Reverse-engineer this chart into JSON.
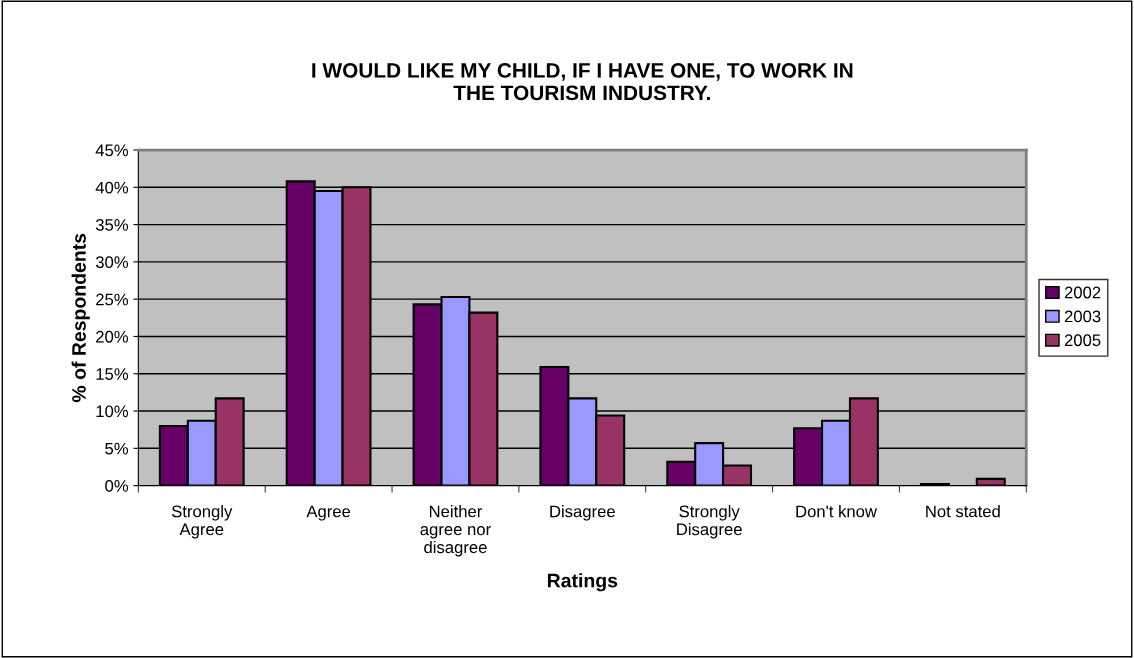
{
  "chart_data": {
    "type": "bar",
    "title": "I WOULD LIKE MY CHILD, IF I HAVE ONE, TO WORK IN\nTHE TOURISM INDUSTRY.",
    "xlabel": "Ratings",
    "ylabel": "% of Respondents",
    "categories": [
      "Strongly\nAgree",
      "Agree",
      "Neither\nagree nor\ndisagree",
      "Disagree",
      "Strongly\nDisagree",
      "Don't know",
      "Not stated"
    ],
    "series": [
      {
        "name": "2002",
        "color": "#660066",
        "values": [
          8.0,
          40.8,
          24.3,
          15.9,
          3.2,
          7.7,
          0.2
        ]
      },
      {
        "name": "2003",
        "color": "#9999ff",
        "values": [
          8.7,
          39.5,
          25.3,
          11.7,
          5.7,
          8.7,
          null
        ]
      },
      {
        "name": "2005",
        "color": "#993366",
        "values": [
          11.7,
          40.0,
          23.2,
          9.4,
          2.7,
          11.7,
          0.9
        ]
      }
    ],
    "ylim": [
      0,
      45
    ],
    "yticks": [
      {
        "value": 0,
        "label": "0%"
      },
      {
        "value": 5,
        "label": "5%"
      },
      {
        "value": 10,
        "label": "10%"
      },
      {
        "value": 15,
        "label": "15%"
      },
      {
        "value": 20,
        "label": "20%"
      },
      {
        "value": 25,
        "label": "25%"
      },
      {
        "value": 30,
        "label": "30%"
      },
      {
        "value": 35,
        "label": "35%"
      },
      {
        "value": 40,
        "label": "40%"
      },
      {
        "value": 45,
        "label": "45%"
      }
    ],
    "grid": "y",
    "legend": "right"
  }
}
